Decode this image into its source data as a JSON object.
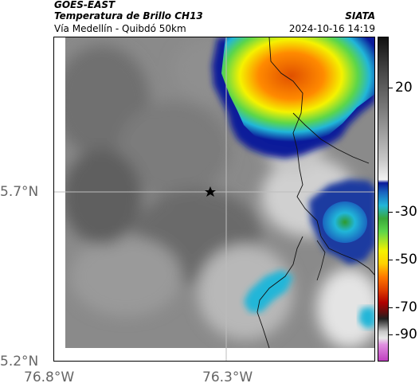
{
  "header": {
    "satellite": "GOES-EAST",
    "product": "Temperatura de Brillo CH13",
    "region": "Vía Medellín - Quibdó 50km",
    "org": "SIATA",
    "datetime": "2024-10-16 14:19"
  },
  "map": {
    "lat_labels": [
      "5.7°N",
      "5.2°N"
    ],
    "lon_labels": [
      "76.8°W",
      "76.3°W"
    ],
    "marker_icon": "star-icon"
  },
  "colorbar": {
    "ticks": [
      "20",
      "-30",
      "-50",
      "-70",
      "-90"
    ],
    "colors": {
      "black": "#111111",
      "gray": "#7a7a7a",
      "white": "#f2f2f2",
      "blue": "#0a1a9a",
      "cyan": "#21b6d8",
      "green": "#3aa83a",
      "yellow": "#f5f200",
      "orange": "#ff7a00",
      "red": "#b00000",
      "magenta": "#c040c0"
    }
  }
}
